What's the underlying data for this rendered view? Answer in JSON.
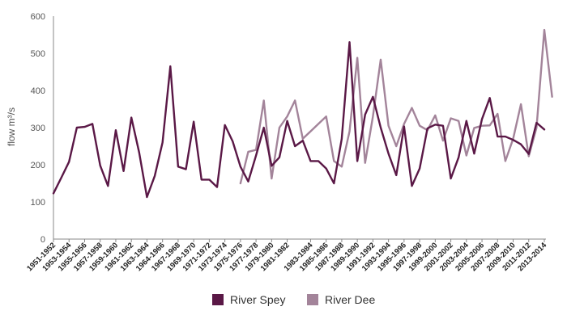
{
  "chart_data": {
    "type": "line",
    "title": "",
    "ylabel": "flow m³/s",
    "xlabel": "",
    "ylim": [
      0,
      600
    ],
    "yticks": [
      0,
      100,
      200,
      300,
      400,
      500,
      600
    ],
    "grid": "none",
    "legend_position": "bottom-center",
    "x_tick_labels": [
      "1951-1952",
      "1953-1954",
      "1955-1956",
      "1957-1958",
      "1959-1960",
      "1961-1962",
      "1963-1964",
      "1964-1966",
      "1967-1968",
      "1969-1970",
      "1971-1972",
      "1973-1974",
      "1975-1976",
      "1977-1978",
      "1979-1980",
      "1981-1982",
      "1983-1984",
      "1985-1986",
      "1987-1988",
      "1989-1990",
      "1991-1992",
      "1993-1994",
      "1995-1996",
      "1997-1998",
      "1999-2000",
      "2001-2002",
      "2003-2004",
      "2005-2006",
      "2007-2008",
      "2009-2010",
      "2011-2012",
      "2013-2014"
    ],
    "series": [
      {
        "name": "River Spey",
        "color": "#5a1846",
        "start_index": 0,
        "values": [
          123,
          165,
          208,
          300,
          302,
          310,
          198,
          143,
          293,
          183,
          327,
          233,
          113,
          170,
          260,
          465,
          195,
          188,
          316,
          160,
          160,
          140,
          307,
          263,
          195,
          155,
          225,
          300,
          197,
          220,
          318,
          250,
          265,
          210,
          210,
          190,
          150,
          270,
          530,
          210,
          335,
          383,
          300,
          230,
          172,
          303,
          143,
          190,
          298,
          308,
          305,
          163,
          220,
          318,
          230,
          323,
          380,
          276,
          276,
          267,
          255,
          229,
          313,
          295
        ]
      },
      {
        "name": "River Dee",
        "color": "#a3849a",
        "start_index": 24,
        "values": [
          150,
          235,
          240,
          373,
          163,
          300,
          330,
          373,
          270,
          290,
          310,
          330,
          210,
          195,
          290,
          488,
          205,
          330,
          483,
          305,
          250,
          310,
          353,
          305,
          293,
          333,
          265,
          325,
          318,
          225,
          299,
          305,
          306,
          337,
          210,
          270,
          363,
          223,
          300,
          563,
          383
        ]
      }
    ]
  }
}
